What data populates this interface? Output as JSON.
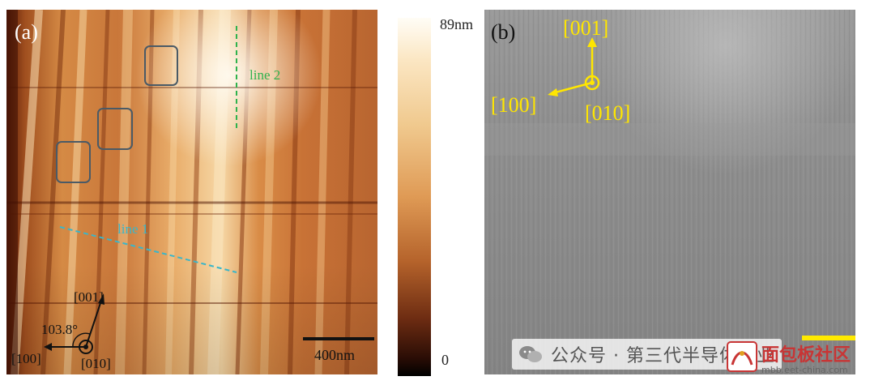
{
  "panel_a": {
    "label": "(a)",
    "line1_label": "line 1",
    "line2_label": "line 2",
    "angle_label": "103.8°",
    "axis_001": "[001]",
    "axis_100": "[100]",
    "axis_010": "[010]",
    "scalebar_label": "400nm",
    "colors": {
      "line1": "#39b6c9",
      "line2": "#2fb24d",
      "box": "#4a5a66"
    }
  },
  "colorbar": {
    "max_label": "89nm",
    "min_label": "0"
  },
  "panel_b": {
    "label": "(b)",
    "axis_001": "[001]",
    "axis_100": "[100]",
    "axis_010": "[010]",
    "colors": {
      "arrows": "#ffe600"
    }
  },
  "watermark": {
    "text": "公众号 · 第三代半导体产业",
    "site_text": "面包板社区",
    "site_url": "mbb.eet-china.com",
    "icon": "wechat-icon"
  }
}
